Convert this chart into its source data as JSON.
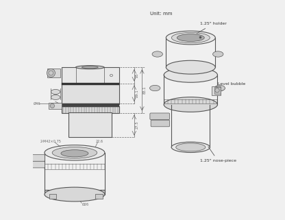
{
  "bg_color": "#f0f0f0",
  "line_color": "#555555",
  "dim_color": "#666666",
  "text_color": "#333333",
  "unit_text": "Unit: mm",
  "dim_25": "25",
  "dim_291": "29.1",
  "dim_831": "83.1",
  "dim_275": "27.5",
  "dim_d46": "Ø46",
  "dim_m42": "2-M42×0.75",
  "dim_226": "22.6",
  "dim_d26": "Ø26",
  "ann_holder": "1.25\" holder",
  "ann_bubble": "Level bubble",
  "ann_nose": "1.25\" nose-piece",
  "label_O": "O"
}
